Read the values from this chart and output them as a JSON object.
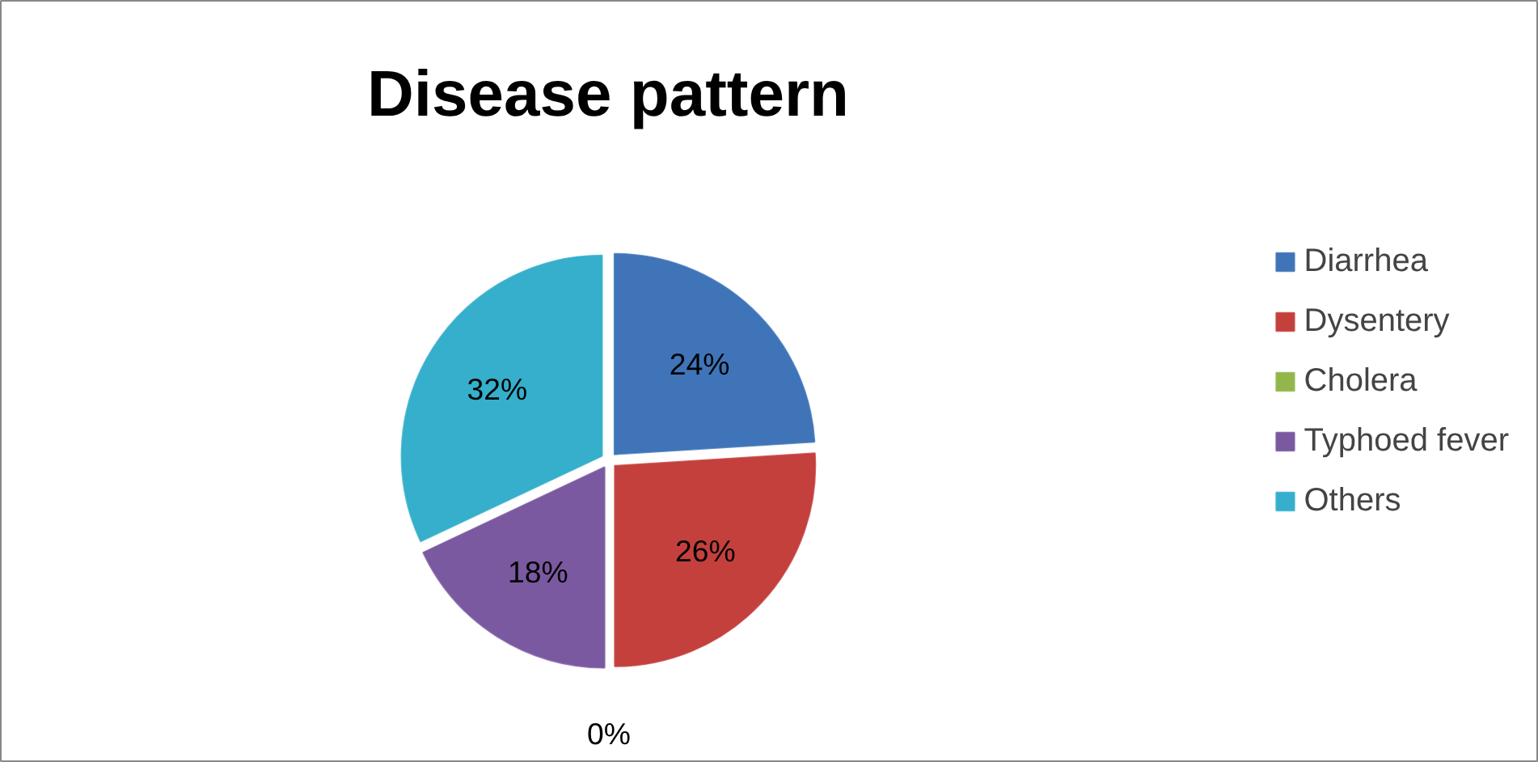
{
  "chart_data": {
    "type": "pie",
    "title": "Disease pattern",
    "categories": [
      "Diarrhea",
      "Dysentery",
      "Cholera",
      "Typhoed fever",
      "Others"
    ],
    "values": [
      24,
      26,
      0,
      18,
      32
    ],
    "colors": [
      "#3f74b8",
      "#c4403d",
      "#92b64c",
      "#7a59a0",
      "#35afcb"
    ],
    "value_labels": [
      "24%",
      "26%",
      "0%",
      "18%",
      "32%"
    ],
    "legend": "right"
  }
}
